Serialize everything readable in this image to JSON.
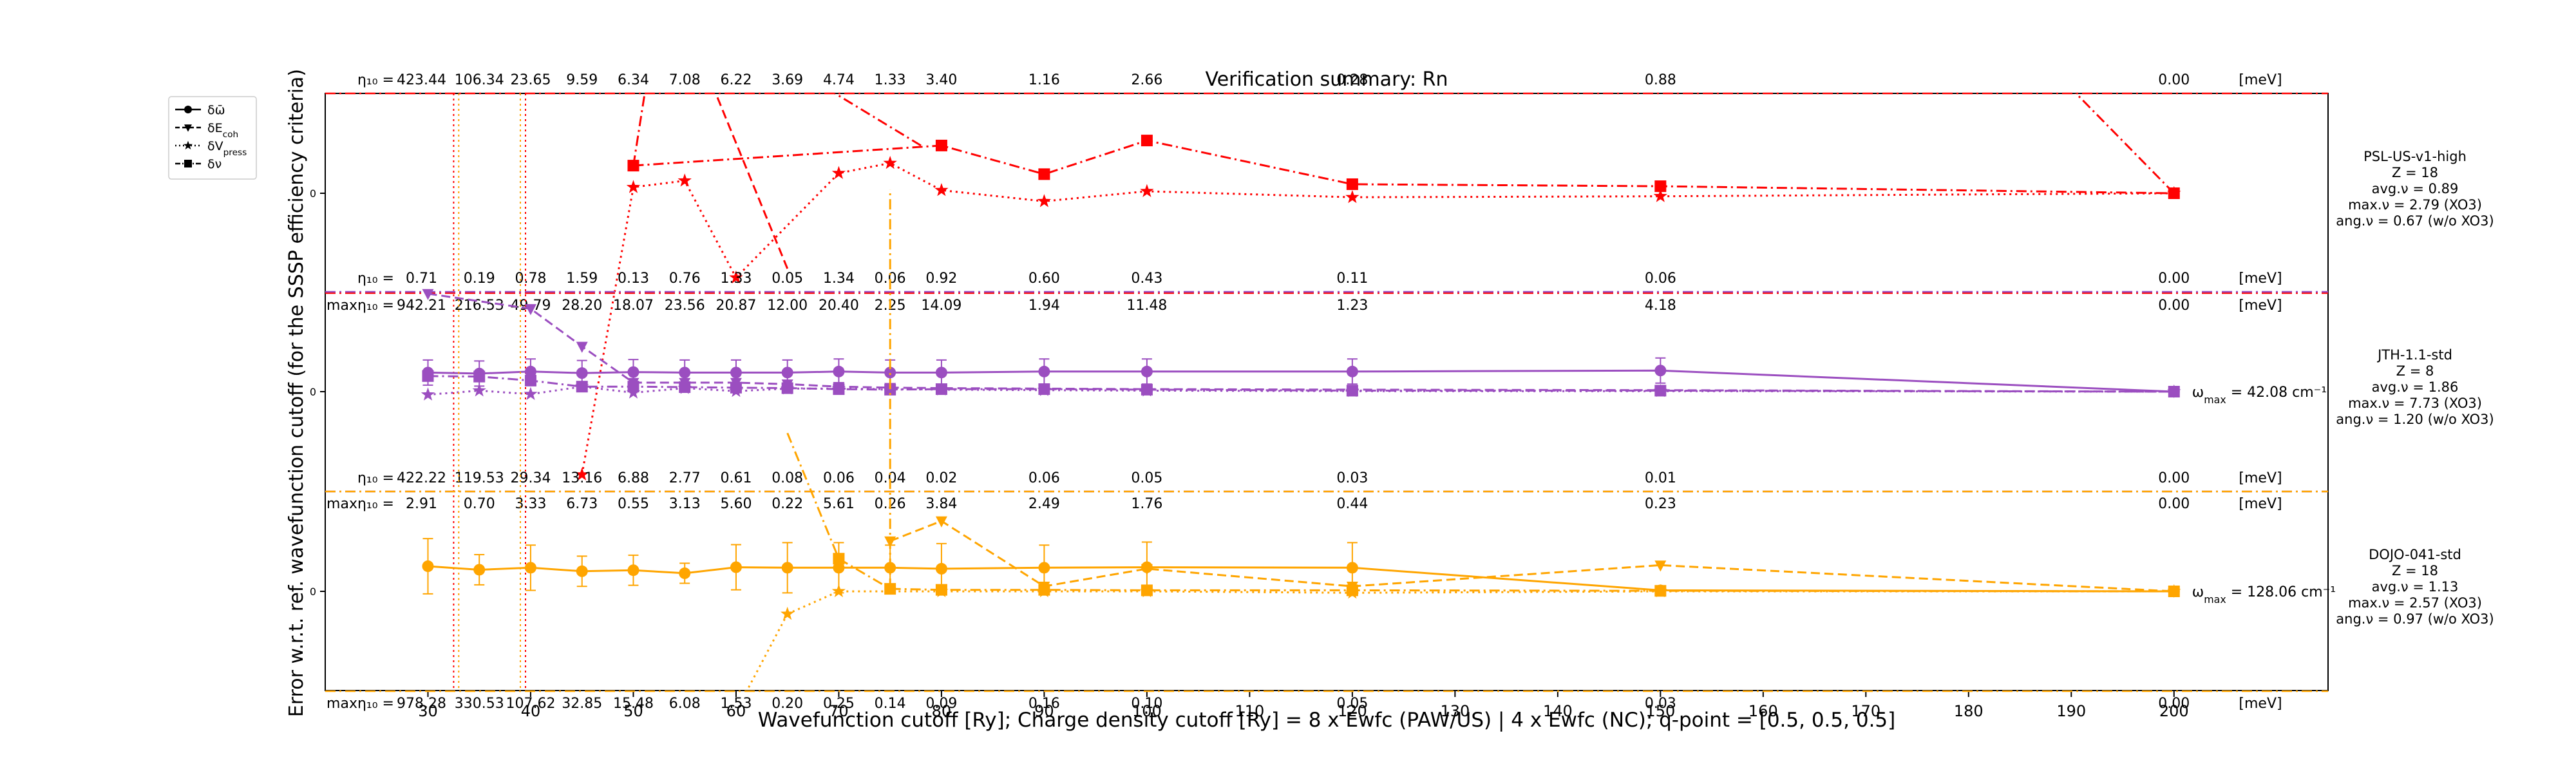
{
  "chart_data": {
    "type": "line",
    "title": "Verification summary: Rn",
    "xlabel": "Wavefunction cutoff [Ry]; Charge density cutoff [Ry] = 8 x Ewfc (PAW/US) | 4 x Ewfc (NC); q-point = [0.5, 0.5, 0.5]",
    "ylabel": "Error w.r.t. ref. wavefunction cutoff (for the SSSP efficiency criteria)",
    "xlim": [
      20,
      215
    ],
    "x_ticks": [
      30,
      40,
      50,
      60,
      70,
      80,
      90,
      100,
      110,
      120,
      130,
      140,
      150,
      160,
      170,
      180,
      190,
      200
    ],
    "cutoffs": [
      30,
      35,
      40,
      45,
      50,
      55,
      60,
      65,
      70,
      75,
      80,
      90,
      100,
      120,
      150,
      200
    ],
    "legend": {
      "position": "outside top-left",
      "entries": [
        {
          "label": "δω̄",
          "style": "solid",
          "marker": "circle"
        },
        {
          "label": "δE_coh",
          "style": "dashed",
          "marker": "triangle"
        },
        {
          "label": "δV_press",
          "style": "dotted",
          "marker": "star"
        },
        {
          "label": "δν",
          "style": "dashdot",
          "marker": "square"
        }
      ]
    },
    "eta_prefix": "η₁₀ =",
    "max_eta_prefix": "maxη₁₀ =",
    "unit": "[meV]",
    "zero_tick": "0",
    "pseudos": [
      {
        "name": "PSL-US-v1-high",
        "color": "#ff0000",
        "info": [
          "PSL-US-v1-high",
          "Z = 18",
          "avg.ν = 0.89",
          "max.ν = 2.79 (XO3)",
          "ang.ν = 0.67 (w/o XO3)"
        ],
        "vlines": [
          32.5,
          39.5
        ],
        "eta": [
          "423.44",
          "106.34",
          "23.65",
          "9.59",
          "6.34",
          "7.08",
          "6.22",
          "3.69",
          "4.74",
          "1.33",
          "3.40",
          "1.16",
          "2.66",
          "0.28",
          "0.88",
          "0.00"
        ],
        "max_eta": [
          "942.21",
          "216.53",
          "49.79",
          "28.20",
          "18.07",
          "23.56",
          "20.87",
          "12.00",
          "20.40",
          "2.25",
          "14.09",
          "1.94",
          "11.48",
          "1.23",
          "4.18",
          "0.00"
        ],
        "omega_label": "",
        "series": {
          "dV_press": {
            "x": [
              45,
              50,
              55,
              60,
              70,
              75,
              80,
              90,
              100,
              120,
              150,
              200
            ],
            "y": [
              -5.6,
              0.12,
              0.25,
              -1.68,
              0.4,
              0.6,
              0.06,
              -0.16,
              0.04,
              -0.08,
              -0.06,
              0.0
            ]
          },
          "dnu": {
            "x": [
              50,
              80,
              90,
              100,
              120,
              150,
              200
            ],
            "y": [
              0.55,
              0.95,
              0.38,
              1.05,
              0.18,
              0.14,
              0.0
            ]
          },
          "dnu_steep": {
            "x": [
              [
                50,
                51.5
              ],
              [
                78,
                65.5
              ],
              [
                200,
                188
              ]
            ],
            "y": [
              [
                0.55,
                2.5
              ],
              [
                0.95,
                2.5
              ],
              [
                0.0,
                2.5
              ]
            ]
          },
          "dE_coh_steep": {
            "x": [
              [
                65,
                57
              ]
            ],
            "y": [
              [
                -1.5,
                2.5
              ]
            ]
          }
        }
      },
      {
        "name": "JTH-1.1-std",
        "color": "#9b4ec0",
        "info": [
          "JTH-1.1-std",
          "Z = 8",
          "avg.ν = 1.86",
          "max.ν = 7.73 (XO3)",
          "ang.ν = 1.20 (w/o XO3)"
        ],
        "vlines": [],
        "eta": [
          "0.71",
          "0.19",
          "0.78",
          "1.59",
          "0.13",
          "0.76",
          "1.33",
          "0.05",
          "1.34",
          "0.06",
          "0.92",
          "0.60",
          "0.43",
          "0.11",
          "0.06",
          "0.00"
        ],
        "max_eta": [
          "2.91",
          "0.70",
          "3.33",
          "6.73",
          "0.55",
          "3.13",
          "5.60",
          "0.22",
          "5.61",
          "0.26",
          "3.84",
          "2.49",
          "1.76",
          "0.44",
          "0.23",
          "0.00"
        ],
        "omega_label": "ω_max = 42.08 cm⁻¹",
        "series": {
          "domega": {
            "x": [
              30,
              35,
              40,
              45,
              50,
              55,
              60,
              65,
              70,
              75,
              80,
              90,
              100,
              120,
              150,
              200
            ],
            "y": [
              0.38,
              0.36,
              0.4,
              0.37,
              0.39,
              0.38,
              0.38,
              0.38,
              0.4,
              0.38,
              0.38,
              0.4,
              0.4,
              0.4,
              0.42,
              0.0
            ],
            "err": [
              0.25,
              0.25,
              0.25,
              0.25,
              0.25,
              0.25,
              0.25,
              0.25,
              0.25,
              0.25,
              0.25,
              0.25,
              0.25,
              0.25,
              0.25,
              0.0
            ]
          },
          "dE_coh": {
            "x": [
              30,
              40,
              45,
              50,
              55,
              60,
              65,
              70,
              75,
              80,
              90,
              100,
              120,
              150,
              200
            ],
            "y": [
              1.95,
              1.65,
              0.9,
              0.18,
              0.18,
              0.18,
              0.15,
              0.1,
              0.08,
              0.07,
              0.06,
              0.05,
              0.04,
              0.03,
              0.0
            ]
          },
          "dV_press": {
            "x": [
              30,
              35,
              40,
              45,
              50,
              55,
              60,
              65,
              70,
              75,
              80,
              90,
              100,
              120,
              150,
              200
            ],
            "y": [
              -0.06,
              0.02,
              -0.05,
              0.1,
              -0.02,
              0.07,
              0.01,
              0.06,
              0.06,
              0.05,
              0.04,
              0.03,
              0.02,
              0.01,
              0.01,
              0.0
            ]
          },
          "dnu": {
            "x": [
              30,
              35,
              40,
              45,
              50,
              55,
              60,
              65,
              70,
              75,
              80,
              90,
              100,
              120,
              150,
              200
            ],
            "y": [
              0.31,
              0.3,
              0.22,
              0.1,
              0.1,
              0.09,
              0.08,
              0.07,
              0.05,
              0.04,
              0.05,
              0.05,
              0.04,
              0.02,
              0.02,
              0.0
            ]
          }
        }
      },
      {
        "name": "DOJO-041-std",
        "color": "#ffa500",
        "info": [
          "DOJO-041-std",
          "Z = 18",
          "avg.ν = 1.13",
          "max.ν = 2.57 (XO3)",
          "ang.ν = 0.97 (w/o XO3)"
        ],
        "vlines": [
          33,
          39
        ],
        "eta": [
          "422.22",
          "119.53",
          "29.34",
          "13.16",
          "6.88",
          "2.77",
          "0.61",
          "0.08",
          "0.06",
          "0.04",
          "0.02",
          "0.06",
          "0.05",
          "0.03",
          "0.01",
          "0.00"
        ],
        "max_eta": [
          "978.28",
          "330.53",
          "107.62",
          "32.85",
          "15.48",
          "6.08",
          "1.53",
          "0.20",
          "0.25",
          "0.14",
          "0.09",
          "0.16",
          "0.10",
          "0.05",
          "0.03",
          "0.00"
        ],
        "omega_label": "ω_max = 128.06 cm⁻¹",
        "series": {
          "domega": {
            "x": [
              30,
              35,
              40,
              45,
              50,
              55,
              60,
              65,
              70,
              75,
              80,
              90,
              100,
              120,
              150,
              200
            ],
            "y": [
              0.5,
              0.43,
              0.47,
              0.4,
              0.42,
              0.36,
              0.48,
              0.47,
              0.47,
              0.47,
              0.45,
              0.47,
              0.48,
              0.47,
              0.02,
              0.0
            ],
            "err": [
              0.55,
              0.3,
              0.45,
              0.3,
              0.3,
              0.2,
              0.45,
              0.5,
              0.5,
              0.45,
              0.5,
              0.45,
              0.5,
              0.5,
              0.05,
              0.0
            ]
          },
          "dE_coh": {
            "x": [
              75,
              80,
              90,
              100,
              120,
              150,
              200
            ],
            "y": [
              1.0,
              1.4,
              0.1,
              0.45,
              0.1,
              0.52,
              0.0
            ]
          },
          "dV_press": {
            "x": [
              65,
              70,
              80,
              90,
              100,
              120,
              150,
              200
            ],
            "y": [
              -0.45,
              0.0,
              0.0,
              0.0,
              0.0,
              -0.03,
              0.0,
              0.0
            ]
          },
          "dnu": {
            "x": [
              70,
              75,
              80,
              90,
              100,
              120,
              150,
              200
            ],
            "y": [
              0.65,
              0.05,
              0.03,
              0.03,
              0.02,
              0.02,
              0.01,
              0.0
            ]
          },
          "dnu_steep": {
            "x": [
              [
                65,
                70
              ],
              [
                75,
                75
              ]
            ],
            "y": [
              [
                3.15,
                0.65
              ],
              [
                0.05,
                8.0
              ]
            ]
          },
          "dV_press_steep": {
            "x": [
              [
                65,
                61
              ]
            ],
            "y": [
              [
                -0.45,
                -2.0
              ]
            ]
          }
        }
      }
    ]
  }
}
